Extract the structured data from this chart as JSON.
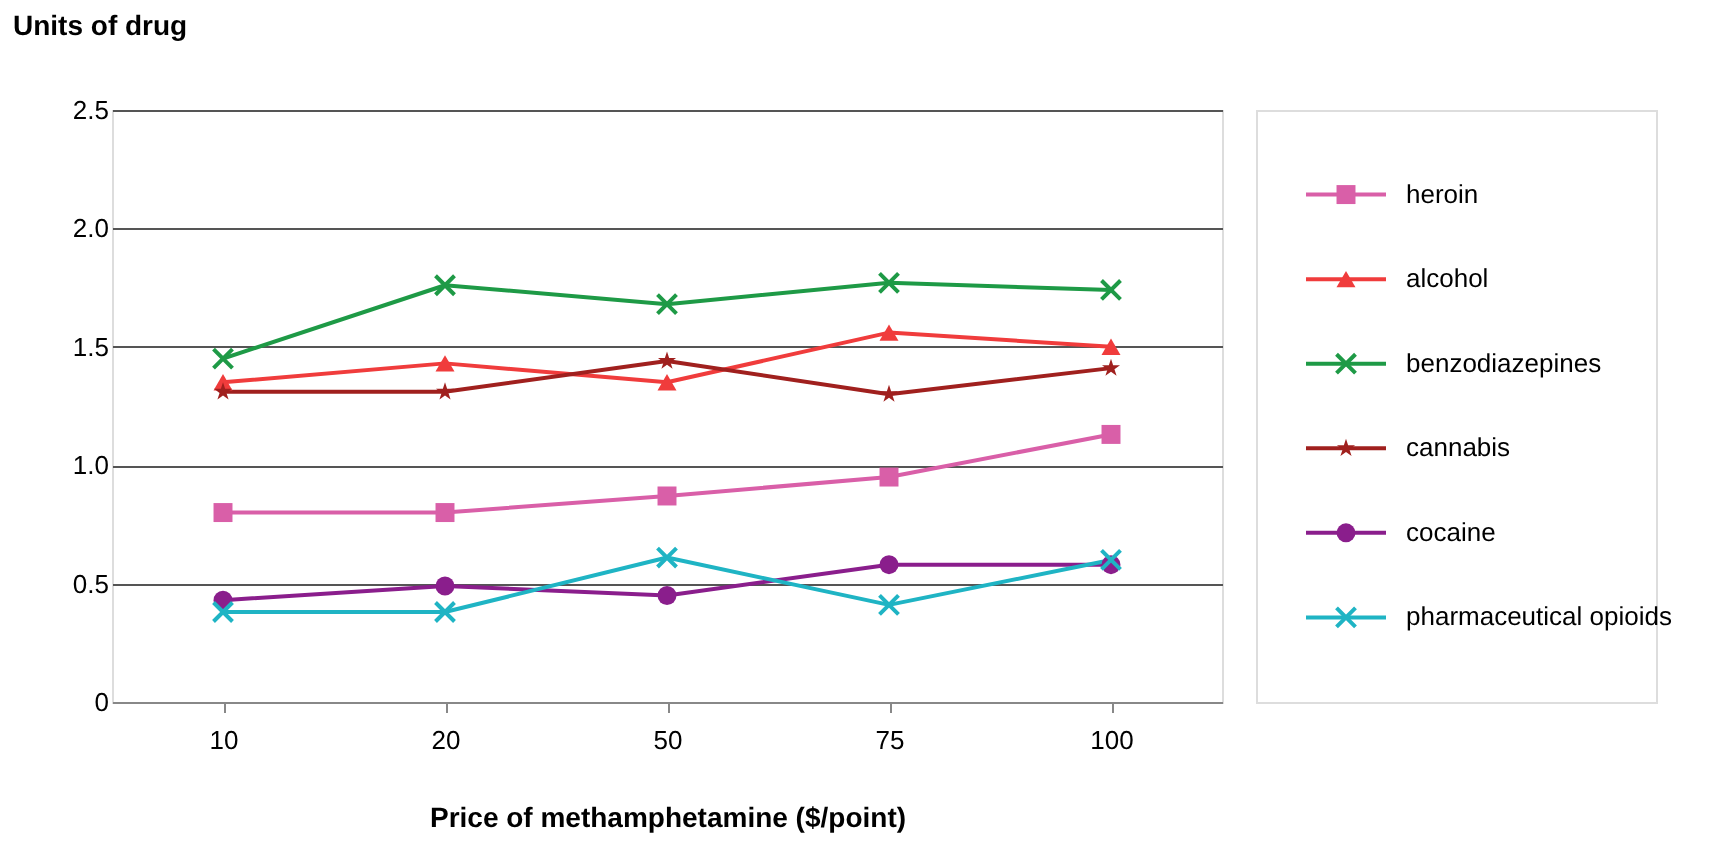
{
  "chart_data": {
    "type": "line",
    "xlabel": "Price of methamphetamine ($/point)",
    "ylabel": "Units of drug",
    "categories": [
      "10",
      "20",
      "50",
      "75",
      "100"
    ],
    "ylim": [
      0,
      2.5
    ],
    "yticks": [
      0,
      0.5,
      {
        "value": 1,
        "label": "1.0"
      },
      1.5,
      {
        "value": 2,
        "label": "2.0"
      },
      2.5
    ],
    "grid": "y",
    "legend": "right",
    "series": [
      {
        "name": "heroin",
        "color": "#d95fa8",
        "marker": "square",
        "values": [
          0.8,
          0.8,
          0.87,
          0.95,
          1.13
        ]
      },
      {
        "name": "alcohol",
        "color": "#f03c3c",
        "marker": "triangle",
        "values": [
          1.35,
          1.43,
          1.35,
          1.56,
          1.5
        ]
      },
      {
        "name": "benzodiazepines",
        "color": "#1e9a46",
        "marker": "cross",
        "values": [
          1.45,
          1.76,
          1.68,
          1.77,
          1.74
        ]
      },
      {
        "name": "cannabis",
        "color": "#a0201e",
        "marker": "star",
        "values": [
          1.31,
          1.31,
          1.44,
          1.3,
          1.41
        ]
      },
      {
        "name": "cocaine",
        "color": "#8a1e8c",
        "marker": "circle",
        "values": [
          0.43,
          0.49,
          0.45,
          0.58,
          0.58
        ]
      },
      {
        "name": "pharmaceutical opioids",
        "color": "#1fb4c4",
        "marker": "cross",
        "values": [
          0.38,
          0.38,
          0.61,
          0.41,
          0.6
        ]
      }
    ]
  }
}
